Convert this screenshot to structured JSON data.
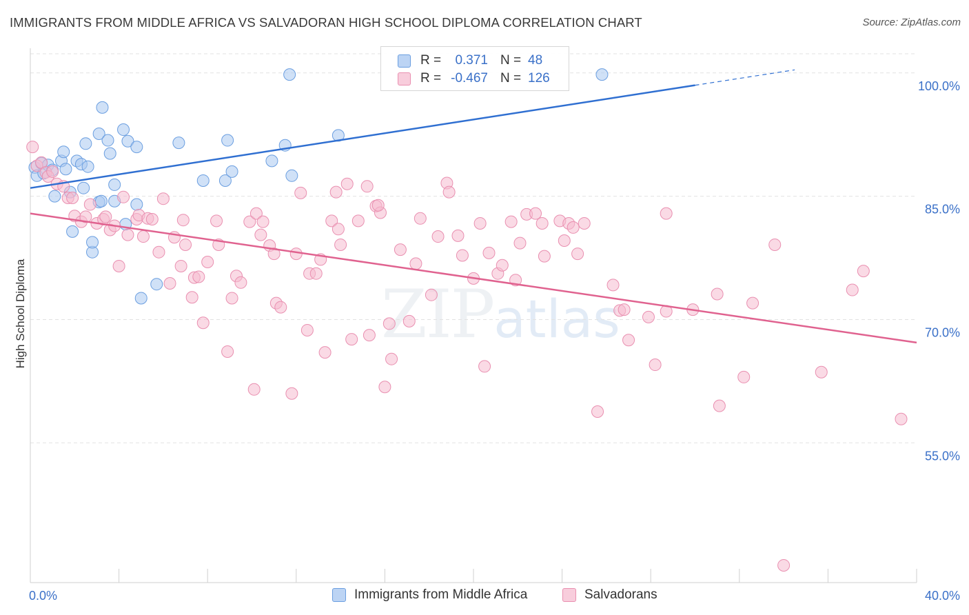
{
  "title": "IMMIGRANTS FROM MIDDLE AFRICA VS SALVADORAN HIGH SCHOOL DIPLOMA CORRELATION CHART",
  "source": "Source: ZipAtlas.com",
  "watermark": {
    "zip": "ZIP",
    "atlas": "atlas"
  },
  "colors": {
    "blue_fill": "#a9c8f0",
    "blue_stroke": "#6a9ee0",
    "blue_line": "#2f6fd1",
    "pink_fill": "#f5bcd0",
    "pink_stroke": "#e98fb0",
    "pink_line": "#e0628f",
    "axis_text": "#3a70c8",
    "grid": "#e2e2e2"
  },
  "legend_top": [
    {
      "r_label": "R =",
      "r_value": "0.371",
      "n_label": "N =",
      "n_value": "48",
      "color": "blue"
    },
    {
      "r_label": "R =",
      "r_value": "-0.467",
      "n_label": "N =",
      "n_value": "126",
      "color": "pink"
    }
  ],
  "chart_data": {
    "type": "scatter",
    "title": "IMMIGRANTS FROM MIDDLE AFRICA VS SALVADORAN HIGH SCHOOL DIPLOMA CORRELATION CHART",
    "xlabel": "",
    "ylabel": "High School Diploma",
    "xlim": [
      0,
      40
    ],
    "ylim": [
      38,
      103
    ],
    "x_tick_labels": [
      {
        "value": 0,
        "label": "0.0%"
      },
      {
        "value": 40,
        "label": "40.0%"
      }
    ],
    "y_tick_labels": [
      {
        "value": 100,
        "label": "100.0%"
      },
      {
        "value": 85,
        "label": "85.0%"
      },
      {
        "value": 70,
        "label": "70.0%"
      },
      {
        "value": 55,
        "label": "55.0%"
      }
    ],
    "series": [
      {
        "name": "Immigrants from Middle Africa",
        "color": "blue",
        "R": 0.371,
        "N": 48,
        "trend": {
          "x0": 0,
          "y0": 86.0,
          "x1": 30,
          "y1": 98.5,
          "dash_to_x": 34.5
        },
        "points": [
          [
            0.2,
            88.5
          ],
          [
            0.3,
            87.5
          ],
          [
            0.5,
            89.0
          ],
          [
            0.6,
            87.8
          ],
          [
            0.8,
            88.8
          ],
          [
            1.0,
            88.2
          ],
          [
            1.1,
            85.0
          ],
          [
            1.4,
            89.3
          ],
          [
            1.5,
            90.4
          ],
          [
            1.6,
            88.3
          ],
          [
            1.8,
            85.5
          ],
          [
            1.9,
            80.7
          ],
          [
            2.1,
            89.3
          ],
          [
            2.3,
            88.9
          ],
          [
            2.4,
            86.0
          ],
          [
            2.5,
            91.4
          ],
          [
            2.6,
            88.6
          ],
          [
            2.8,
            78.2
          ],
          [
            2.8,
            79.4
          ],
          [
            3.1,
            84.3
          ],
          [
            3.1,
            92.6
          ],
          [
            3.2,
            84.4
          ],
          [
            3.25,
            95.8
          ],
          [
            3.5,
            91.8
          ],
          [
            3.6,
            90.2
          ],
          [
            3.8,
            84.4
          ],
          [
            3.8,
            86.4
          ],
          [
            4.2,
            93.1
          ],
          [
            4.3,
            81.6
          ],
          [
            4.4,
            91.7
          ],
          [
            4.8,
            84.0
          ],
          [
            4.8,
            91.0
          ],
          [
            5.0,
            72.6
          ],
          [
            5.7,
            74.3
          ],
          [
            6.7,
            91.5
          ],
          [
            7.8,
            86.9
          ],
          [
            8.8,
            86.9
          ],
          [
            8.9,
            91.8
          ],
          [
            9.1,
            88.0
          ],
          [
            10.9,
            89.3
          ],
          [
            11.5,
            91.2
          ],
          [
            11.8,
            87.5
          ],
          [
            11.7,
            99.8
          ],
          [
            13.9,
            92.4
          ],
          [
            25.8,
            99.8
          ]
        ]
      },
      {
        "name": "Salvadorans",
        "color": "pink",
        "R": -0.467,
        "N": 126,
        "trend": {
          "x0": 0,
          "y0": 82.9,
          "x1": 40,
          "y1": 67.2
        },
        "points": [
          [
            0.3,
            88.7
          ],
          [
            0.5,
            89.1
          ],
          [
            0.7,
            87.9
          ],
          [
            0.8,
            87.4
          ],
          [
            1.0,
            88.0
          ],
          [
            1.2,
            86.5
          ],
          [
            1.5,
            86.2
          ],
          [
            1.7,
            84.8
          ],
          [
            1.9,
            84.8
          ],
          [
            2.0,
            82.6
          ],
          [
            2.3,
            81.9
          ],
          [
            2.5,
            82.5
          ],
          [
            2.7,
            84.0
          ],
          [
            3.0,
            81.7
          ],
          [
            3.3,
            82.2
          ],
          [
            3.4,
            82.5
          ],
          [
            3.6,
            80.9
          ],
          [
            3.8,
            81.4
          ],
          [
            4.0,
            76.5
          ],
          [
            4.2,
            84.9
          ],
          [
            4.4,
            80.3
          ],
          [
            4.8,
            82.2
          ],
          [
            4.9,
            82.7
          ],
          [
            5.1,
            80.1
          ],
          [
            5.3,
            82.3
          ],
          [
            5.5,
            82.2
          ],
          [
            5.8,
            78.2
          ],
          [
            6.0,
            84.7
          ],
          [
            6.3,
            74.4
          ],
          [
            6.5,
            80.0
          ],
          [
            6.8,
            76.5
          ],
          [
            6.9,
            82.1
          ],
          [
            7.0,
            79.1
          ],
          [
            7.3,
            72.7
          ],
          [
            7.4,
            75.1
          ],
          [
            7.6,
            75.2
          ],
          [
            7.8,
            69.6
          ],
          [
            8.0,
            77.0
          ],
          [
            8.4,
            82.0
          ],
          [
            8.5,
            79.1
          ],
          [
            8.9,
            66.1
          ],
          [
            9.1,
            72.6
          ],
          [
            9.3,
            75.3
          ],
          [
            9.5,
            74.5
          ],
          [
            9.9,
            81.9
          ],
          [
            10.1,
            61.5
          ],
          [
            10.2,
            82.9
          ],
          [
            10.4,
            80.3
          ],
          [
            10.5,
            81.9
          ],
          [
            10.8,
            79.0
          ],
          [
            11.0,
            78.0
          ],
          [
            11.1,
            72.0
          ],
          [
            11.3,
            71.5
          ],
          [
            11.8,
            61.0
          ],
          [
            12.0,
            78.0
          ],
          [
            12.2,
            85.4
          ],
          [
            12.5,
            68.7
          ],
          [
            12.6,
            75.6
          ],
          [
            12.9,
            75.6
          ],
          [
            13.1,
            77.3
          ],
          [
            13.3,
            66.0
          ],
          [
            13.6,
            82.0
          ],
          [
            13.8,
            85.5
          ],
          [
            13.9,
            81.0
          ],
          [
            14.0,
            79.1
          ],
          [
            14.3,
            86.5
          ],
          [
            14.5,
            67.6
          ],
          [
            14.8,
            82.0
          ],
          [
            15.2,
            86.2
          ],
          [
            15.3,
            68.1
          ],
          [
            15.6,
            83.8
          ],
          [
            15.8,
            83.0
          ],
          [
            16.0,
            61.8
          ],
          [
            16.2,
            69.5
          ],
          [
            16.3,
            65.2
          ],
          [
            16.7,
            78.5
          ],
          [
            17.1,
            69.8
          ],
          [
            17.4,
            76.8
          ],
          [
            17.6,
            82.3
          ],
          [
            18.1,
            73.0
          ],
          [
            18.4,
            80.1
          ],
          [
            18.8,
            86.6
          ],
          [
            18.9,
            85.5
          ],
          [
            19.3,
            80.2
          ],
          [
            19.5,
            77.8
          ],
          [
            20.0,
            75.0
          ],
          [
            20.3,
            81.7
          ],
          [
            20.5,
            64.3
          ],
          [
            20.7,
            78.1
          ],
          [
            21.1,
            75.6
          ],
          [
            21.3,
            76.6
          ],
          [
            21.7,
            81.9
          ],
          [
            21.9,
            74.8
          ],
          [
            22.1,
            79.3
          ],
          [
            22.4,
            82.8
          ],
          [
            22.8,
            82.9
          ],
          [
            23.1,
            81.7
          ],
          [
            23.2,
            77.7
          ],
          [
            23.9,
            82.0
          ],
          [
            24.1,
            79.6
          ],
          [
            24.3,
            81.7
          ],
          [
            24.5,
            81.2
          ],
          [
            24.7,
            78.0
          ],
          [
            25.0,
            81.7
          ],
          [
            25.6,
            58.8
          ],
          [
            26.3,
            74.2
          ],
          [
            26.6,
            71.1
          ],
          [
            26.8,
            71.2
          ],
          [
            27.0,
            67.5
          ],
          [
            27.9,
            70.3
          ],
          [
            28.2,
            64.5
          ],
          [
            28.7,
            82.9
          ],
          [
            28.7,
            71.0
          ],
          [
            29.9,
            71.2
          ],
          [
            31.0,
            73.1
          ],
          [
            31.1,
            59.5
          ],
          [
            32.2,
            63.0
          ],
          [
            32.6,
            72.0
          ],
          [
            33.6,
            79.1
          ],
          [
            34.0,
            40.1
          ],
          [
            35.7,
            63.6
          ],
          [
            37.1,
            73.6
          ],
          [
            37.6,
            75.9
          ],
          [
            39.3,
            57.9
          ],
          [
            0.1,
            91.0
          ],
          [
            15.7,
            83.9
          ]
        ]
      }
    ]
  },
  "bottom_legend": [
    {
      "label": "Immigrants from Middle Africa",
      "color": "blue"
    },
    {
      "label": "Salvadorans",
      "color": "pink"
    }
  ]
}
